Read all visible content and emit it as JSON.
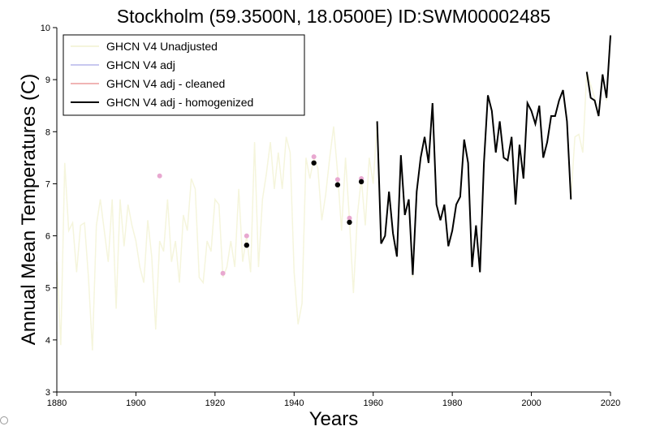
{
  "chart_data": {
    "type": "line",
    "title": "Stockholm (59.3500N, 18.0500E) ID:SWM00002485",
    "xlabel": "Years",
    "ylabel": "Annual Mean Temperatures (C)",
    "xlim": [
      1880,
      2020
    ],
    "ylim": [
      3,
      10
    ],
    "xticks": [
      1880,
      1900,
      1920,
      1940,
      1960,
      1980,
      2000,
      2020
    ],
    "yticks": [
      3,
      4,
      5,
      6,
      7,
      8,
      9,
      10
    ],
    "legend_position": "top-left",
    "series": [
      {
        "name": "GHCN V4 Unadjusted",
        "color": "#f5f5dc",
        "style": "line",
        "x": [
          1880,
          1881,
          1882,
          1883,
          1884,
          1885,
          1886,
          1887,
          1888,
          1889,
          1890,
          1891,
          1892,
          1893,
          1894,
          1895,
          1896,
          1897,
          1898,
          1899,
          1900,
          1901,
          1902,
          1903,
          1904,
          1905,
          1906,
          1907,
          1908,
          1909,
          1910,
          1911,
          1912,
          1913,
          1914,
          1915,
          1916,
          1917,
          1918,
          1919,
          1920,
          1921,
          1922,
          1923,
          1924,
          1925,
          1926,
          1927,
          1928,
          1929,
          1930,
          1931,
          1932,
          1933,
          1934,
          1935,
          1936,
          1937,
          1938,
          1939,
          1940,
          1941,
          1942,
          1943,
          1944,
          1945,
          1946,
          1947,
          1948,
          1949,
          1950,
          1951,
          1952,
          1953,
          1954,
          1955,
          1956,
          1957,
          1958,
          1959,
          1960,
          1961,
          1962,
          1963,
          1964,
          1965,
          1966,
          1967,
          1968,
          1969,
          1970,
          1971,
          1972,
          1973,
          1974,
          1975,
          1976,
          1977,
          1978,
          1979,
          1980,
          1981,
          1982,
          1983,
          1984,
          1985,
          1986,
          1987,
          1988,
          1989,
          1990,
          1991,
          1992,
          1993,
          1994,
          1995,
          1996,
          1997,
          1998,
          1999,
          2000,
          2001,
          2002,
          2003,
          2004,
          2005,
          2006,
          2007,
          2008,
          2009,
          2010,
          2011,
          2012,
          2013,
          2014,
          2015,
          2016,
          2017,
          2018,
          2019,
          2020
        ],
        "values": [
          5.5,
          3.9,
          7.4,
          6.1,
          6.25,
          5.3,
          6.2,
          6.25,
          5.2,
          3.8,
          6.2,
          6.7,
          6.1,
          5.5,
          6.7,
          4.6,
          6.7,
          5.8,
          6.6,
          6.2,
          5.9,
          5.4,
          5.1,
          6.3,
          5.6,
          4.2,
          5.9,
          5.7,
          6.7,
          5.5,
          5.9,
          5.1,
          6.4,
          6.1,
          7.1,
          6.9,
          5.2,
          5.1,
          5.9,
          5.7,
          6.7,
          6.6,
          5.2,
          5.4,
          5.9,
          5.4,
          6.9,
          5.5,
          6.0,
          5.3,
          7.8,
          5.4,
          6.7,
          7.2,
          7.8,
          6.9,
          7.6,
          6.9,
          7.9,
          7.6,
          5.3,
          4.3,
          4.7,
          7.5,
          7.1,
          7.5,
          7.3,
          6.3,
          6.8,
          7.5,
          8.1,
          7.2,
          6.1,
          7.5,
          6.3,
          4.9,
          6.4,
          7.1,
          6.2,
          7.5,
          7.0,
          8.2,
          5.9,
          6.0,
          6.8,
          6.0,
          5.6,
          7.5,
          6.4,
          6.7,
          5.2,
          6.8,
          7.5,
          7.9,
          7.4,
          8.55,
          6.6,
          6.3,
          6.6,
          5.8,
          6.1,
          6.6,
          6.75,
          7.85,
          7.4,
          5.4,
          6.2,
          5.3,
          7.4,
          8.7,
          8.4,
          7.6,
          8.2,
          7.5,
          7.45,
          7.9,
          6.6,
          7.75,
          7.1,
          8.55,
          8.4,
          8.15,
          8.5,
          7.5,
          7.8,
          8.3,
          8.3,
          8.6,
          8.8,
          8.2,
          6.7,
          7.9,
          7.95,
          7.6,
          9.15,
          8.9,
          8.65,
          8.3,
          9.1,
          8.6,
          9.85
        ]
      },
      {
        "name": "GHCN V4 adj",
        "color": "#c8c8f0",
        "style": "line",
        "x": [],
        "values": []
      },
      {
        "name": "GHCN V4 adj - cleaned",
        "color": "#f0b4b4",
        "style": "points",
        "x": [
          1906,
          1922,
          1928,
          1945,
          1951,
          1954,
          1957
        ],
        "values": [
          7.15,
          5.28,
          6.0,
          7.52,
          7.08,
          6.34,
          7.1
        ]
      },
      {
        "name": "GHCN V4 adj - homogenized",
        "color": "#000000",
        "style": "line",
        "segments": [
          {
            "x": [
              1961,
              1962,
              1963,
              1964,
              1965,
              1966,
              1967,
              1968,
              1969,
              1970,
              1971,
              1972,
              1973,
              1974,
              1975,
              1976,
              1977,
              1978,
              1979,
              1980,
              1981,
              1982,
              1983,
              1984,
              1985,
              1986,
              1987,
              1988,
              1989,
              1990,
              1991,
              1992,
              1993,
              1994,
              1995,
              1996,
              1997,
              1998,
              1999,
              2000,
              2001,
              2002,
              2003,
              2004,
              2005,
              2006,
              2007,
              2008,
              2009,
              2010
            ],
            "values": [
              8.2,
              5.85,
              6.0,
              6.85,
              6.05,
              5.6,
              7.55,
              6.4,
              6.7,
              5.25,
              6.85,
              7.5,
              7.9,
              7.4,
              8.55,
              6.6,
              6.3,
              6.6,
              5.8,
              6.1,
              6.6,
              6.75,
              7.85,
              7.4,
              5.4,
              6.2,
              5.3,
              7.4,
              8.7,
              8.4,
              7.6,
              8.2,
              7.5,
              7.45,
              7.9,
              6.6,
              7.75,
              7.1,
              8.55,
              8.4,
              8.15,
              8.5,
              7.5,
              7.8,
              8.3,
              8.3,
              8.6,
              8.8,
              8.2,
              6.7
            ]
          },
          {
            "x": [
              2014,
              2015,
              2016,
              2017,
              2018,
              2019,
              2020
            ],
            "values": [
              9.15,
              8.65,
              8.6,
              8.3,
              9.1,
              8.65,
              9.85
            ]
          }
        ],
        "points_x": [
          1928,
          1945,
          1951,
          1954,
          1957
        ],
        "points_values": [
          5.82,
          7.4,
          6.98,
          6.26,
          7.04
        ]
      }
    ]
  }
}
